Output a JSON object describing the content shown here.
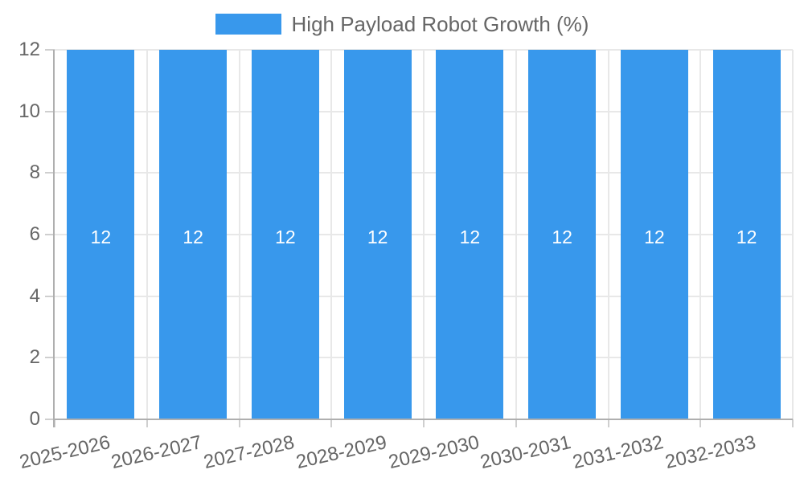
{
  "legend": {
    "label": "High Payload Robot Growth (%)"
  },
  "chart_data": {
    "type": "bar",
    "title": "High Payload Robot Growth (%)",
    "categories": [
      "2025-2026",
      "2026-2027",
      "2027-2028",
      "2028-2029",
      "2029-2030",
      "2030-2031",
      "2031-2032",
      "2032-2033"
    ],
    "values": [
      12,
      12,
      12,
      12,
      12,
      12,
      12,
      12
    ],
    "bar_value_labels": [
      "12",
      "12",
      "12",
      "12",
      "12",
      "12",
      "12",
      "12"
    ],
    "xlabel": "",
    "ylabel": "",
    "ylim": [
      0,
      12
    ],
    "yticks": [
      0,
      2,
      4,
      6,
      8,
      10,
      12
    ],
    "grid": true,
    "legend_position": "top-center",
    "colors": {
      "bar": "#3898EC",
      "grid": "#E8E8E8",
      "axis": "#AFAFAF",
      "tick": "#CFCFCF",
      "text": "#666666",
      "bar_label": "#FFFFFF",
      "background": "#FFFFFF"
    }
  }
}
